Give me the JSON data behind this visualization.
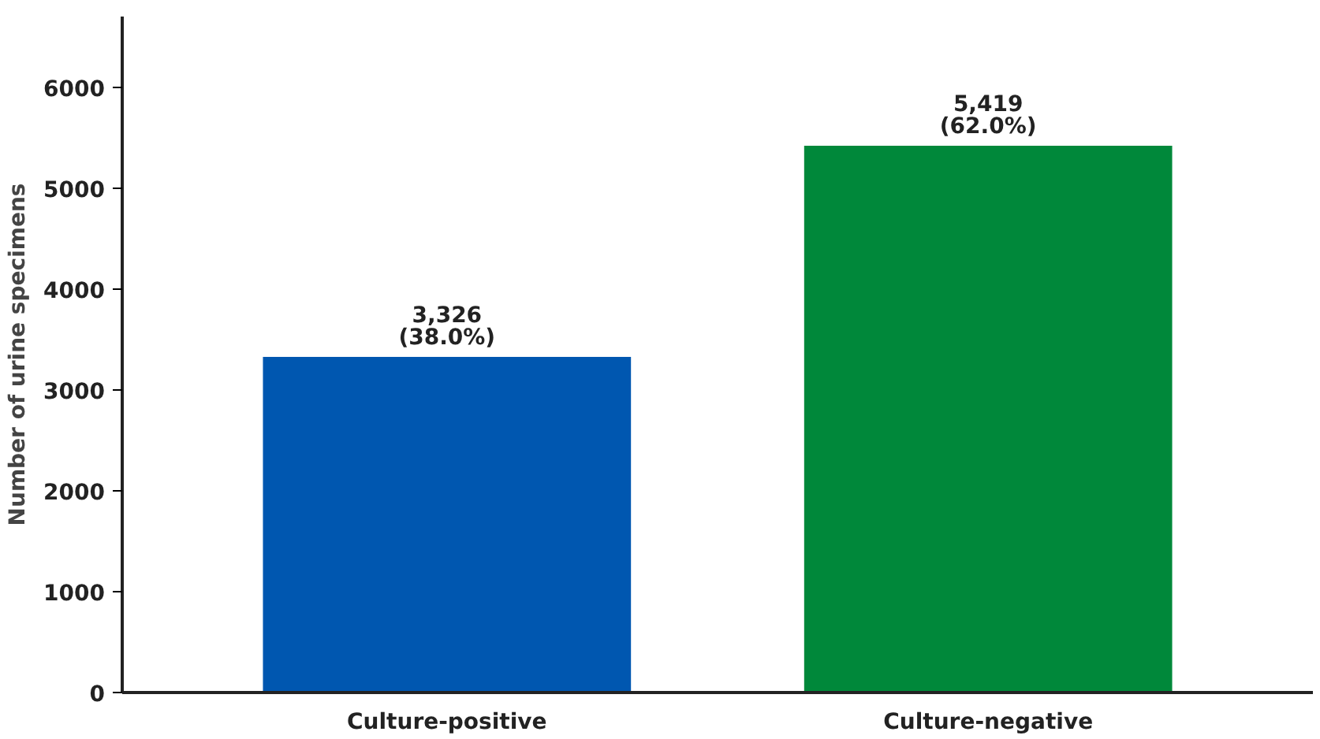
{
  "chart_data": {
    "type": "bar",
    "ylabel": "Number of urine specimens",
    "categories": [
      "Culture-positive",
      "Culture-negative"
    ],
    "values": [
      3326,
      5419
    ],
    "colors": [
      "#0057b0",
      "#00883a"
    ],
    "value_labels": [
      "3,326\n(38.0%)",
      "5,419\n(62.0%)"
    ],
    "ylim": [
      0,
      6700
    ],
    "yticks": [
      0,
      1000,
      2000,
      3000,
      4000,
      5000,
      6000
    ],
    "grid": false
  }
}
